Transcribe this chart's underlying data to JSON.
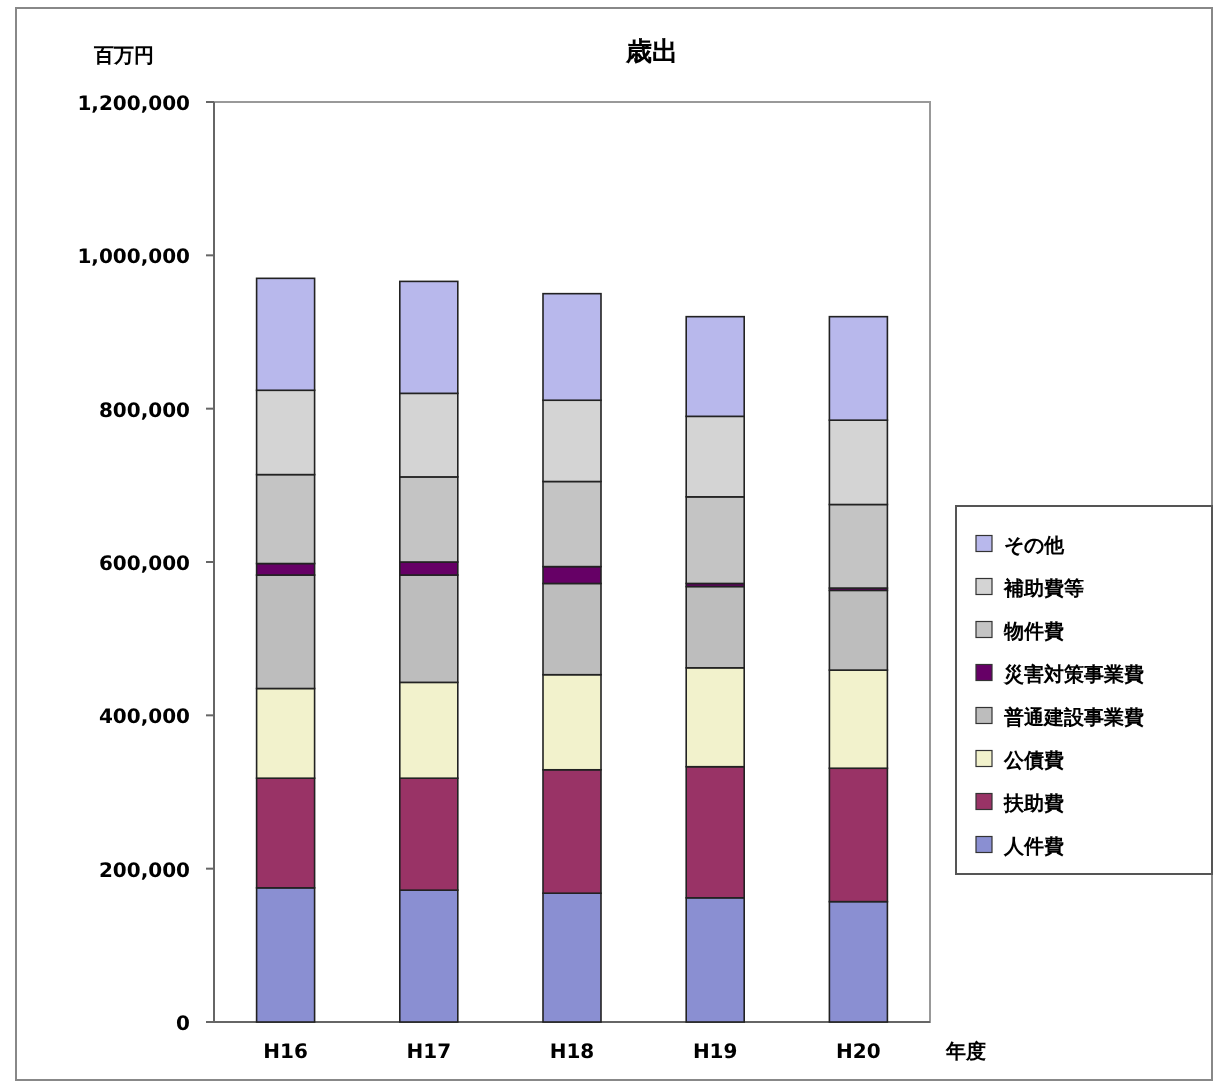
{
  "chart_data": {
    "type": "bar",
    "title": "歳出",
    "ylabel": "百万円",
    "xlabel": "年度",
    "stacked": true,
    "legend": "right",
    "grid": false,
    "categories": [
      "H16",
      "H17",
      "H18",
      "H19",
      "H20"
    ],
    "ylim": [
      0,
      1200000
    ],
    "yticks": [
      {
        "value": 0,
        "label": "0"
      },
      {
        "value": 200000,
        "label": "200,000"
      },
      {
        "value": 400000,
        "label": "400,000"
      },
      {
        "value": 600000,
        "label": "600,000"
      },
      {
        "value": 800000,
        "label": "800,000"
      },
      {
        "value": 1000000,
        "label": "1,000,000"
      },
      {
        "value": 1200000,
        "label": "1,200,000"
      }
    ],
    "series": [
      {
        "name": "人件費",
        "color": "#8a8fd2",
        "values": [
          175000,
          172000,
          168000,
          162000,
          157000
        ]
      },
      {
        "name": "扶助費",
        "color": "#993366",
        "values": [
          143000,
          146000,
          161000,
          171000,
          174000
        ]
      },
      {
        "name": "公債費",
        "color": "#f2f2cc",
        "values": [
          117000,
          125000,
          124000,
          129000,
          128000
        ]
      },
      {
        "name": "普通建設事業費",
        "color": "#bdbdbd",
        "values": [
          148000,
          140000,
          119000,
          106000,
          104000
        ]
      },
      {
        "name": "災害対策事業費",
        "color": "#660066",
        "values": [
          15000,
          17000,
          22000,
          4000,
          3000
        ]
      },
      {
        "name": "物件費",
        "color": "#c4c4c4",
        "values": [
          116000,
          111000,
          111000,
          113000,
          109000
        ]
      },
      {
        "name": "補助費等",
        "color": "#d4d4d4",
        "values": [
          110000,
          109000,
          106000,
          105000,
          110000
        ]
      },
      {
        "name": "その他",
        "color": "#b8b8ec",
        "values": [
          146000,
          146000,
          139000,
          130000,
          135000
        ]
      }
    ]
  }
}
